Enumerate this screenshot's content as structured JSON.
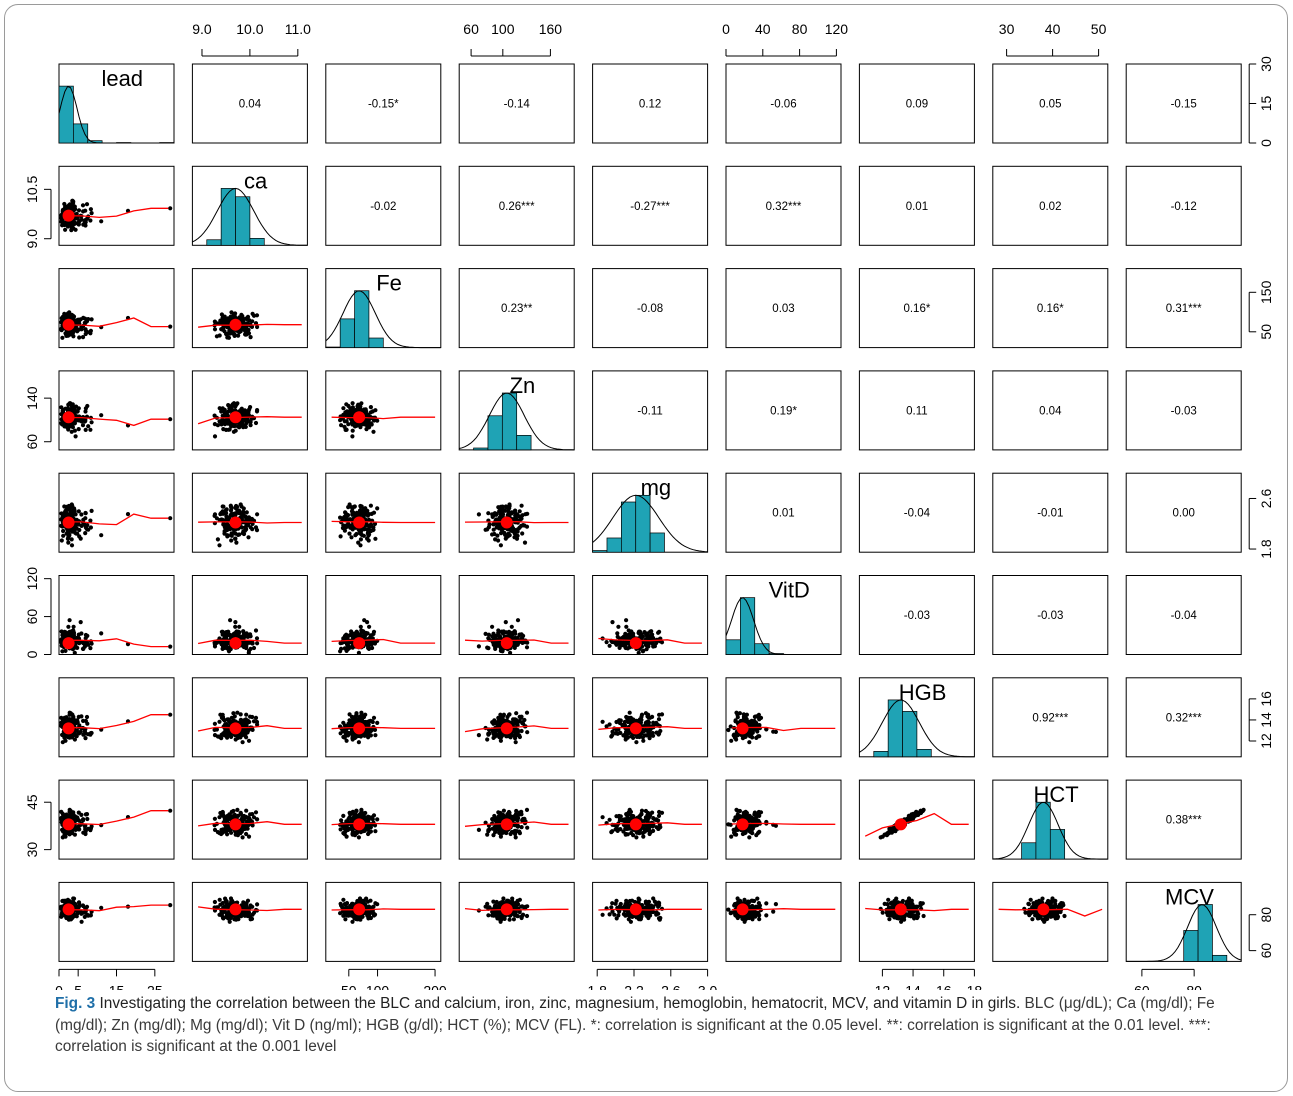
{
  "chart_data": {
    "type": "scatter",
    "variables": [
      "lead",
      "ca",
      "Fe",
      "Zn",
      "mg",
      "VitD",
      "HGB",
      "HCT",
      "MCV"
    ],
    "correlations": [
      [
        null,
        "0.04",
        "-0.15*",
        "-0.14",
        "0.12",
        "-0.06",
        "0.09",
        "0.05",
        "-0.15"
      ],
      [
        null,
        null,
        "-0.02",
        "0.26***",
        "-0.27***",
        "0.32***",
        "0.01",
        "0.02",
        "-0.12"
      ],
      [
        null,
        null,
        null,
        "0.23**",
        "-0.08",
        "0.03",
        "0.16*",
        "0.16*",
        "0.31***"
      ],
      [
        null,
        null,
        null,
        null,
        "-0.11",
        "0.19*",
        "0.11",
        "0.04",
        "-0.03"
      ],
      [
        null,
        null,
        null,
        null,
        null,
        "0.01",
        "-0.04",
        "-0.01",
        "0.00"
      ],
      [
        null,
        null,
        null,
        null,
        null,
        null,
        "-0.03",
        "-0.03",
        "-0.04"
      ],
      [
        null,
        null,
        null,
        null,
        null,
        null,
        null,
        "0.92***",
        "0.32***"
      ],
      [
        null,
        null,
        null,
        null,
        null,
        null,
        null,
        null,
        "0.38***"
      ]
    ],
    "ranges": {
      "lead": [
        0,
        30
      ],
      "ca": [
        8.8,
        11.2
      ],
      "Fe": [
        10,
        210
      ],
      "Zn": [
        45,
        190
      ],
      "mg": [
        1.75,
        3.0
      ],
      "VitD": [
        0,
        125
      ],
      "HGB": [
        10.5,
        18
      ],
      "HCT": [
        27,
        52
      ],
      "MCV": [
        54,
        98
      ]
    },
    "means": {
      "lead": 2.5,
      "ca": 9.7,
      "Fe": 68,
      "Zn": 105,
      "mg": 2.22,
      "VitD": 18,
      "HGB": 13.2,
      "HCT": 38,
      "MCV": 83
    },
    "axis_ticks": {
      "top": [
        {
          "col": 1,
          "labels": [
            "9.0",
            "10.0",
            "11.0"
          ],
          "values": [
            9.0,
            10.0,
            11.0
          ]
        },
        {
          "col": 3,
          "labels": [
            "60",
            "100",
            "160"
          ],
          "values": [
            60,
            100,
            160
          ]
        },
        {
          "col": 5,
          "labels": [
            "0",
            "40",
            "80",
            "120"
          ],
          "values": [
            0,
            40,
            80,
            120
          ]
        },
        {
          "col": 7,
          "labels": [
            "30",
            "40",
            "50"
          ],
          "values": [
            30,
            40,
            50
          ]
        }
      ],
      "bottom": [
        {
          "col": 0,
          "labels": [
            "0",
            "5",
            "15",
            "25"
          ],
          "values": [
            0,
            5,
            15,
            25
          ]
        },
        {
          "col": 2,
          "labels": [
            "50",
            "100",
            "200"
          ],
          "values": [
            50,
            100,
            200
          ]
        },
        {
          "col": 4,
          "labels": [
            "1.8",
            "2.2",
            "2.6",
            "3.0"
          ],
          "values": [
            1.8,
            2.2,
            2.6,
            3.0
          ]
        },
        {
          "col": 6,
          "labels": [
            "12",
            "14",
            "16",
            "18"
          ],
          "values": [
            12,
            14,
            16,
            18
          ]
        },
        {
          "col": 8,
          "labels": [
            "60",
            "80"
          ],
          "values": [
            60,
            80
          ]
        }
      ],
      "left": [
        {
          "row": 1,
          "labels": [
            "9.0",
            "10.5"
          ],
          "values": [
            9.0,
            10.5
          ]
        },
        {
          "row": 3,
          "labels": [
            "60",
            "140"
          ],
          "values": [
            60,
            140
          ]
        },
        {
          "row": 5,
          "labels": [
            "0",
            "60",
            "120"
          ],
          "values": [
            0,
            60,
            120
          ]
        },
        {
          "row": 7,
          "labels": [
            "30",
            "45"
          ],
          "values": [
            30,
            45
          ]
        }
      ],
      "right": [
        {
          "row": 0,
          "labels": [
            "0",
            "15",
            "30"
          ],
          "values": [
            0,
            15,
            30
          ]
        },
        {
          "row": 2,
          "labels": [
            "50",
            "150"
          ],
          "values": [
            50,
            150
          ]
        },
        {
          "row": 4,
          "labels": [
            "1.8",
            "2.6"
          ],
          "values": [
            1.8,
            2.6
          ]
        },
        {
          "row": 6,
          "labels": [
            "12",
            "14",
            "16"
          ],
          "values": [
            12,
            14,
            16
          ]
        },
        {
          "row": 8,
          "labels": [
            "60",
            "80"
          ],
          "values": [
            60,
            80
          ]
        }
      ]
    },
    "histogram_color": "#1fa3b5",
    "point_color": "#000000",
    "mean_color": "#ff0000",
    "smoother_color": "#ff0000"
  },
  "caption": {
    "label": "Fig. 3",
    "heading": "Investigating the correlation between the BLC and calcium, iron, zinc, magnesium, hemoglobin, hematocrit, MCV, and vitamin D in girls.",
    "body": "BLC (μg/dL); Ca (mg/dl); Fe (mg/dl); Zn (mg/dl); Mg (mg/dl); Vit D (ng/ml); HGB (g/dl); HCT (%); MCV (FL). *: correlation is significant at the 0.05 level. **: correlation is significant at the 0.01 level. ***: correlation is significant at the 0.001 level"
  }
}
